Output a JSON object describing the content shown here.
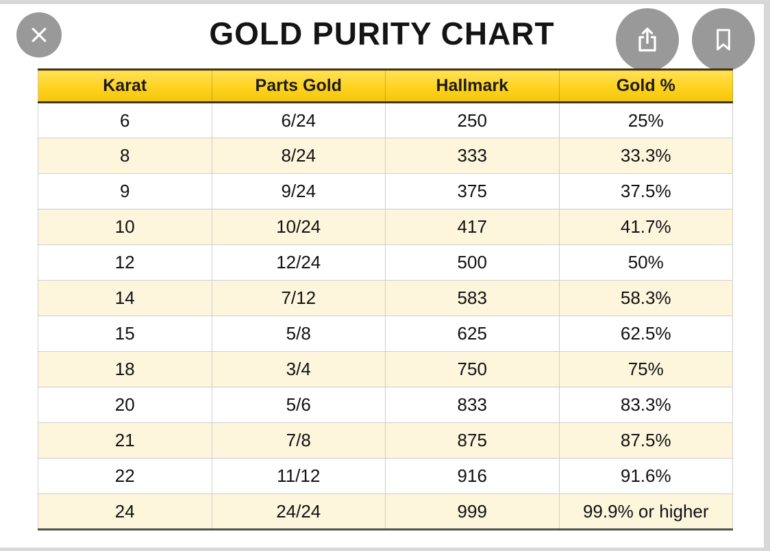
{
  "colors": {
    "header_gold_top": "#ffe157",
    "header_gold_mid": "#ffd21e",
    "header_gold_bottom": "#f3c50c",
    "row_alt": "#fdf6dd",
    "grid_line": "#cdcdcd",
    "header_outline": "#3c3422",
    "table_bottom_line": "#4f4f4f",
    "button_gray": "rgba(135,135,135,0.85)"
  },
  "viewer": {
    "title": "GOLD PURITY CHART",
    "buttons": {
      "close": "close",
      "share": "share",
      "bookmark": "bookmark"
    }
  },
  "chart_data": {
    "type": "table",
    "title": "GOLD PURITY CHART",
    "columns": [
      "Karat",
      "Parts Gold",
      "Hallmark",
      "Gold %"
    ],
    "rows": [
      [
        "6",
        "6/24",
        "250",
        "25%"
      ],
      [
        "8",
        "8/24",
        "333",
        "33.3%"
      ],
      [
        "9",
        "9/24",
        "375",
        "37.5%"
      ],
      [
        "10",
        "10/24",
        "417",
        "41.7%"
      ],
      [
        "12",
        "12/24",
        "500",
        "50%"
      ],
      [
        "14",
        "7/12",
        "583",
        "58.3%"
      ],
      [
        "15",
        "5/8",
        "625",
        "62.5%"
      ],
      [
        "18",
        "3/4",
        "750",
        "75%"
      ],
      [
        "20",
        "5/6",
        "833",
        "83.3%"
      ],
      [
        "21",
        "7/8",
        "875",
        "87.5%"
      ],
      [
        "22",
        "11/12",
        "916",
        "91.6%"
      ],
      [
        "24",
        "24/24",
        "999",
        "99.9% or higher"
      ]
    ]
  }
}
